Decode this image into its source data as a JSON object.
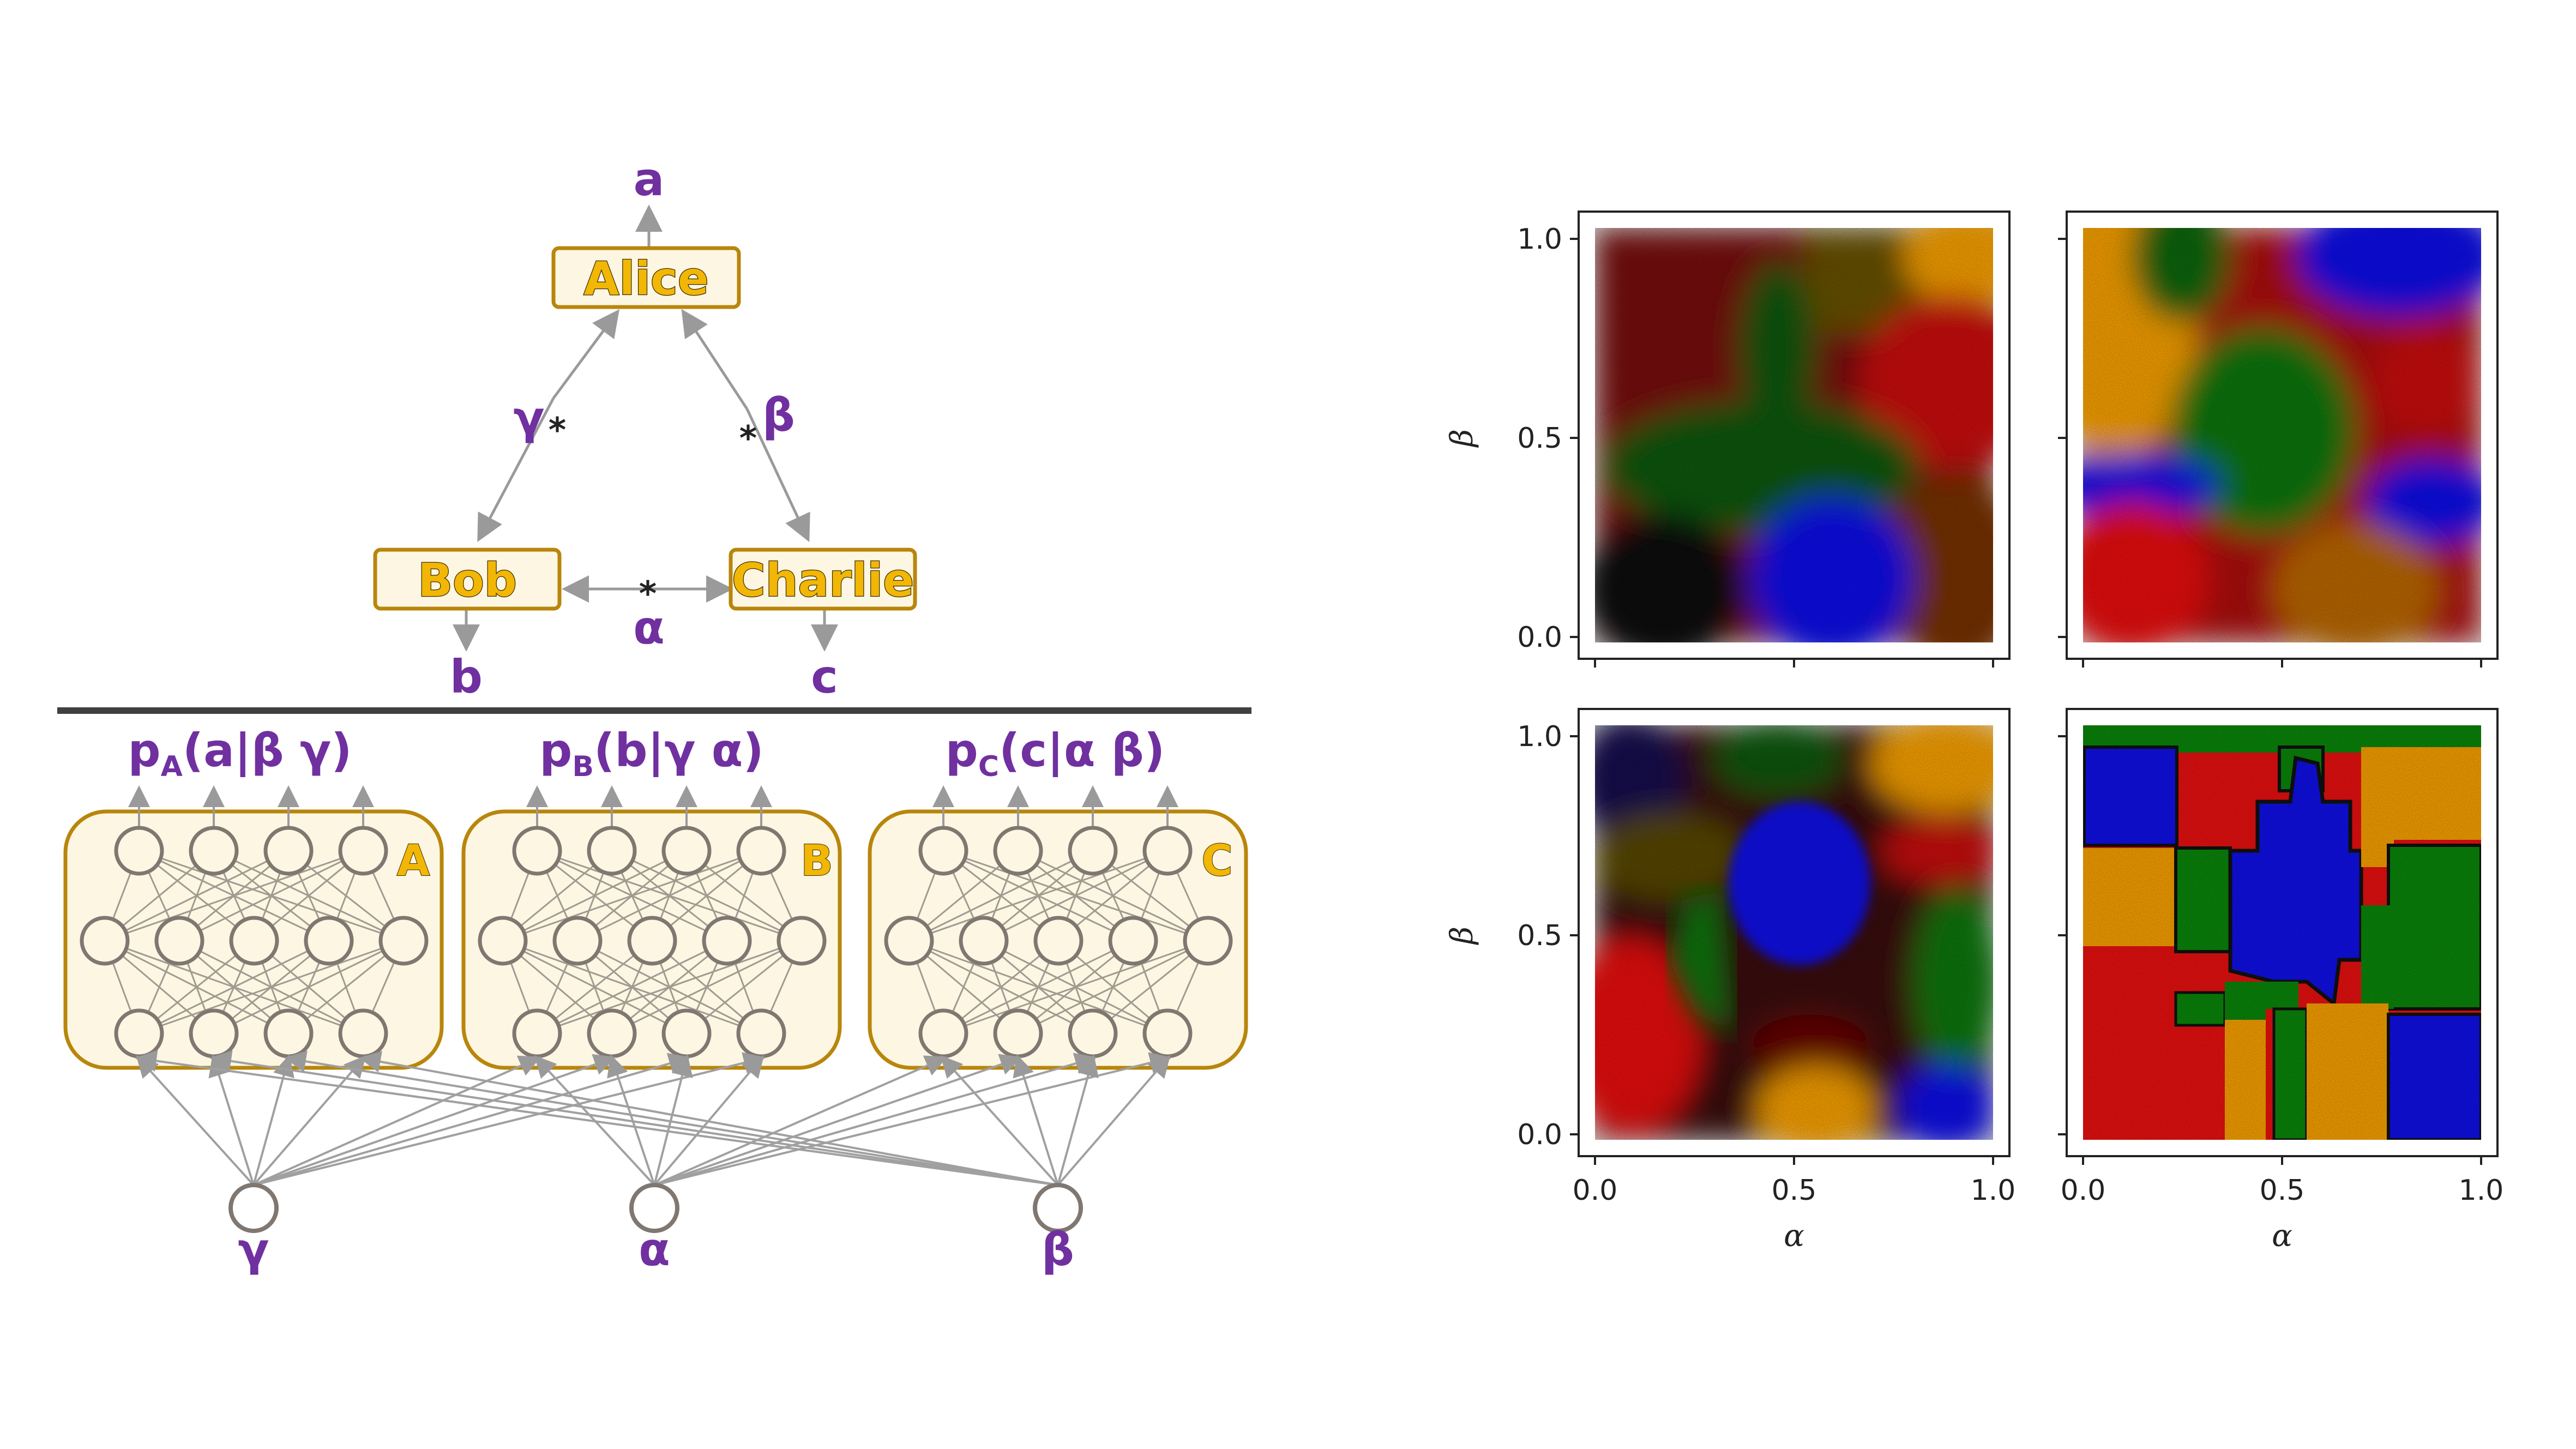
{
  "triangle": {
    "parties": {
      "alice": "Alice",
      "bob": "Bob",
      "charlie": "Charlie"
    },
    "outputs": {
      "a": "a",
      "b": "b",
      "c": "c"
    },
    "sources": {
      "gamma": "γ",
      "beta": "β",
      "alpha": "α"
    },
    "source_marker": "*"
  },
  "network": {
    "distributions": [
      {
        "base": "p",
        "sub": "A",
        "args": "(a|β γ)"
      },
      {
        "base": "p",
        "sub": "B",
        "args": "(b|γ α)"
      },
      {
        "base": "p",
        "sub": "C",
        "args": "(c|α β)"
      }
    ],
    "box_letters": [
      "A",
      "B",
      "C"
    ],
    "inputs": [
      "γ",
      "α",
      "β"
    ]
  },
  "plots": {
    "tick_labels": [
      "0.0",
      "0.5",
      "1.0"
    ],
    "xlabel": "α",
    "ylabel": "β",
    "colors": {
      "red": "#e01010",
      "green": "#0a7a0a",
      "blue": "#1010f0",
      "orange": "#FFA500"
    }
  },
  "colors": {
    "purple": "#7030A0",
    "gold": "#F2B705",
    "box_border": "#B8860B",
    "box_fill": "#FDF6E3"
  }
}
